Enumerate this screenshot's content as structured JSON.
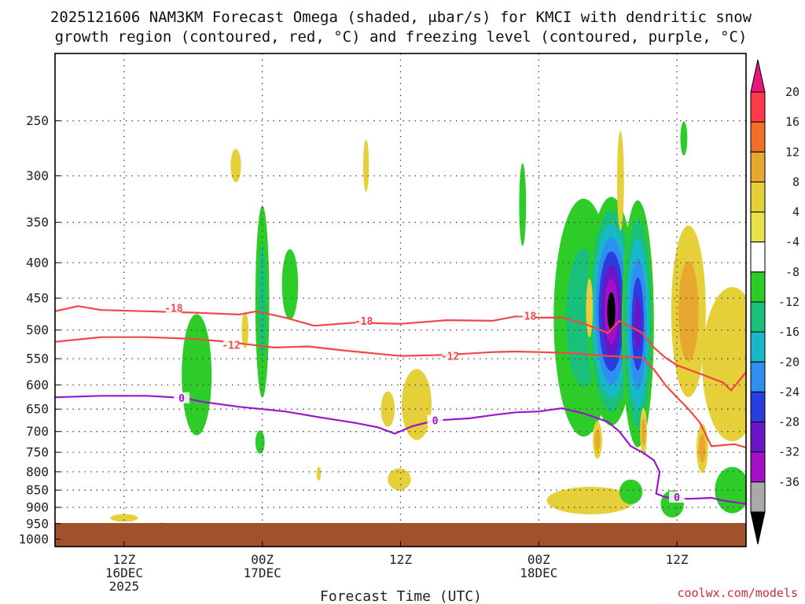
{
  "chart_data": {
    "type": "heatmap",
    "title_line1": "2025121606 NAM3KM Forecast Omega (shaded, μbar/s) for KMCI with dendritic snow",
    "title_line2": "growth region (contoured, red, °C) and freezing level (contoured, purple, °C)",
    "xlabel": "Forecast Time (UTC)",
    "credit": "coolwx.com/models",
    "x_range_hours": [
      0,
      60
    ],
    "y_range_hpa": [
      1025,
      200
    ],
    "y_ticks": [
      250,
      300,
      350,
      400,
      450,
      500,
      550,
      600,
      650,
      700,
      750,
      800,
      850,
      900,
      950,
      1000
    ],
    "x_ticks": [
      {
        "hour": 6,
        "label1": "12Z",
        "label2": "16DEC",
        "label3": "2025"
      },
      {
        "hour": 18,
        "label1": "00Z",
        "label2": "17DEC",
        "label3": ""
      },
      {
        "hour": 30,
        "label1": "12Z",
        "label2": "",
        "label3": ""
      },
      {
        "hour": 42,
        "label1": "00Z",
        "label2": "18DEC",
        "label3": ""
      },
      {
        "hour": 54,
        "label1": "12Z",
        "label2": "",
        "label3": ""
      }
    ],
    "colorbar": {
      "labels": [
        "20",
        "16",
        "12",
        "8",
        "4",
        "-4",
        "-8",
        "-12",
        "-16",
        "-20",
        "-24",
        "-28",
        "-32",
        "-36"
      ],
      "colors": [
        "#ff3b49",
        "#f06f2a",
        "#e8a830",
        "#e6d03a",
        "#e8e24a",
        "#ffffff",
        "#2ecc28",
        "#1ac07a",
        "#19b8c8",
        "#2f8ff0",
        "#2a3ee0",
        "#6a16c8",
        "#a410c8",
        "#a9a9a9"
      ],
      "top_arrow_color": "#e8167a",
      "bottom_arrow_color": "#000000"
    },
    "ground_color": "#a0522d",
    "omega_blobs": [
      {
        "t": 15.7,
        "p": 290,
        "rt": 0.45,
        "rp": 16,
        "levels": [
          "#e6d03a"
        ]
      },
      {
        "t": 27.0,
        "p": 290,
        "rt": 0.25,
        "rp": 25,
        "levels": [
          "#e6d03a"
        ]
      },
      {
        "t": 12.3,
        "p": 580,
        "rt": 1.3,
        "rp": 115,
        "levels": [
          "#2ecc28"
        ]
      },
      {
        "t": 18.0,
        "p": 455,
        "rt": 0.6,
        "rp": 140,
        "levels": [
          "#2ecc28",
          "#1ac07a"
        ]
      },
      {
        "t": 16.5,
        "p": 500,
        "rt": 0.3,
        "rp": 30,
        "levels": [
          "#e6d03a"
        ]
      },
      {
        "t": 20.4,
        "p": 430,
        "rt": 0.7,
        "rp": 50,
        "levels": [
          "#2ecc28"
        ]
      },
      {
        "t": 17.8,
        "p": 725,
        "rt": 0.4,
        "rp": 28,
        "levels": [
          "#2ecc28"
        ]
      },
      {
        "t": 22.9,
        "p": 805,
        "rt": 0.2,
        "rp": 18,
        "levels": [
          "#e6d03a"
        ]
      },
      {
        "t": 28.9,
        "p": 650,
        "rt": 0.6,
        "rp": 38,
        "levels": [
          "#e6d03a"
        ]
      },
      {
        "t": 31.4,
        "p": 640,
        "rt": 1.3,
        "rp": 75,
        "levels": [
          "#e6d03a"
        ]
      },
      {
        "t": 29.9,
        "p": 820,
        "rt": 1.0,
        "rp": 30,
        "levels": [
          "#e6d03a"
        ]
      },
      {
        "t": 6.0,
        "p": 932,
        "rt": 1.2,
        "rp": 12,
        "levels": [
          "#e6d03a"
        ]
      },
      {
        "t": 46.5,
        "p": 880,
        "rt": 3.8,
        "rp": 40,
        "levels": [
          "#e6d03a"
        ]
      },
      {
        "t": 40.6,
        "p": 330,
        "rt": 0.3,
        "rp": 45,
        "levels": [
          "#2ecc28"
        ]
      },
      {
        "t": 45.9,
        "p": 480,
        "rt": 2.6,
        "rp": 180,
        "levels": [
          "#2ecc28",
          "#1ac07a"
        ]
      },
      {
        "t": 48.3,
        "p": 470,
        "rt": 2.1,
        "rp": 170,
        "levels": [
          "#2ecc28",
          "#1ac07a",
          "#19b8c8",
          "#2f8ff0",
          "#2a3ee0",
          "#6a16c8",
          "#a410c8",
          "#000000"
        ]
      },
      {
        "t": 49.1,
        "p": 305,
        "rt": 0.3,
        "rp": 50,
        "levels": [
          "#e6d03a"
        ]
      },
      {
        "t": 50.6,
        "p": 490,
        "rt": 1.4,
        "rp": 190,
        "levels": [
          "#2ecc28",
          "#1ac07a",
          "#19b8c8",
          "#2f8ff0",
          "#2a3ee0",
          "#6a16c8"
        ]
      },
      {
        "t": 54.6,
        "p": 265,
        "rt": 0.3,
        "rp": 15,
        "levels": [
          "#2ecc28"
        ]
      },
      {
        "t": 55.0,
        "p": 470,
        "rt": 1.5,
        "rp": 130,
        "levels": [
          "#e6d03a",
          "#e8a830"
        ]
      },
      {
        "t": 58.8,
        "p": 560,
        "rt": 2.6,
        "rp": 140,
        "levels": [
          "#e6d03a"
        ]
      },
      {
        "t": 46.4,
        "p": 465,
        "rt": 0.3,
        "rp": 45,
        "levels": [
          "#e6d03a"
        ]
      },
      {
        "t": 47.1,
        "p": 720,
        "rt": 0.4,
        "rp": 45,
        "levels": [
          "#e6d03a",
          "#e8a830"
        ]
      },
      {
        "t": 51.1,
        "p": 700,
        "rt": 0.3,
        "rp": 55,
        "levels": [
          "#e6d03a",
          "#e8a830"
        ]
      },
      {
        "t": 50.0,
        "p": 855,
        "rt": 1.0,
        "rp": 35,
        "levels": [
          "#2ecc28"
        ]
      },
      {
        "t": 56.2,
        "p": 740,
        "rt": 0.5,
        "rp": 60,
        "levels": [
          "#e6d03a",
          "#e8a830"
        ]
      },
      {
        "t": 58.8,
        "p": 850,
        "rt": 1.5,
        "rp": 65,
        "levels": [
          "#2ecc28"
        ]
      },
      {
        "t": 53.6,
        "p": 890,
        "rt": 1.0,
        "rp": 40,
        "levels": [
          "#2ecc28"
        ]
      }
    ],
    "contours": [
      {
        "name": "-18",
        "color": "#f04848",
        "labels": [
          {
            "t": 10.3,
            "p": 465
          },
          {
            "t": 26.8,
            "p": 485
          },
          {
            "t": 41.0,
            "p": 477
          }
        ],
        "points": [
          [
            0,
            470
          ],
          [
            2,
            462
          ],
          [
            4,
            468
          ],
          [
            8,
            470
          ],
          [
            12,
            472
          ],
          [
            16,
            475
          ],
          [
            17.5,
            470
          ],
          [
            20,
            480
          ],
          [
            22.5,
            493
          ],
          [
            26,
            488
          ],
          [
            30,
            490
          ],
          [
            34,
            484
          ],
          [
            38,
            485
          ],
          [
            40,
            478
          ],
          [
            42,
            480
          ],
          [
            44,
            480
          ],
          [
            46,
            490
          ],
          [
            48,
            505
          ],
          [
            49,
            485
          ],
          [
            50,
            495
          ],
          [
            51,
            505
          ],
          [
            52,
            530
          ],
          [
            53,
            548
          ],
          [
            54,
            562
          ],
          [
            55,
            570
          ],
          [
            56,
            578
          ],
          [
            58,
            595
          ],
          [
            58.7,
            611
          ],
          [
            60,
            575
          ]
        ]
      },
      {
        "name": "-12",
        "color": "#f04848",
        "labels": [
          {
            "t": 15.3,
            "p": 525
          },
          {
            "t": 34.3,
            "p": 545
          }
        ],
        "points": [
          [
            0,
            520
          ],
          [
            4,
            512
          ],
          [
            8,
            512
          ],
          [
            12,
            515
          ],
          [
            15,
            520
          ],
          [
            17,
            525
          ],
          [
            19,
            530
          ],
          [
            22,
            528
          ],
          [
            25,
            535
          ],
          [
            30,
            545
          ],
          [
            34,
            543
          ],
          [
            38,
            538
          ],
          [
            40,
            537
          ],
          [
            42,
            538
          ],
          [
            45,
            540
          ],
          [
            48,
            545
          ],
          [
            51,
            548
          ],
          [
            52,
            570
          ],
          [
            53,
            600
          ],
          [
            54,
            625
          ],
          [
            55,
            650
          ],
          [
            56,
            680
          ],
          [
            57,
            735
          ],
          [
            59,
            730
          ],
          [
            60,
            738
          ]
        ]
      },
      {
        "name": "0",
        "color": "#9b16c8",
        "labels": [
          {
            "t": 11.0,
            "p": 626
          },
          {
            "t": 33.0,
            "p": 675
          },
          {
            "t": 54.0,
            "p": 870
          }
        ],
        "points": [
          [
            0,
            625
          ],
          [
            4,
            622
          ],
          [
            8,
            622
          ],
          [
            11,
            626
          ],
          [
            13,
            635
          ],
          [
            16,
            645
          ],
          [
            18,
            650
          ],
          [
            20,
            655
          ],
          [
            23,
            668
          ],
          [
            26,
            680
          ],
          [
            28,
            690
          ],
          [
            29.5,
            705
          ],
          [
            31,
            688
          ],
          [
            33,
            675
          ],
          [
            36,
            670
          ],
          [
            38,
            663
          ],
          [
            40,
            657
          ],
          [
            42,
            655
          ],
          [
            44,
            648
          ],
          [
            46,
            660
          ],
          [
            48,
            678
          ],
          [
            49,
            700
          ],
          [
            50,
            735
          ],
          [
            51,
            750
          ],
          [
            52,
            770
          ],
          [
            52.5,
            800
          ],
          [
            52.2,
            860
          ],
          [
            53,
            870
          ],
          [
            55,
            875
          ],
          [
            57,
            872
          ],
          [
            58,
            880
          ],
          [
            60,
            890
          ]
        ]
      },
      {
        "name": "0",
        "color": "#9b16c8",
        "labels": [],
        "points": [
          [
            0,
            968
          ],
          [
            3,
            963
          ],
          [
            6,
            958
          ],
          [
            8,
            953
          ],
          [
            9.3,
            950
          ],
          [
            9.3,
            958
          ],
          [
            8.6,
            960
          ]
        ]
      }
    ]
  }
}
